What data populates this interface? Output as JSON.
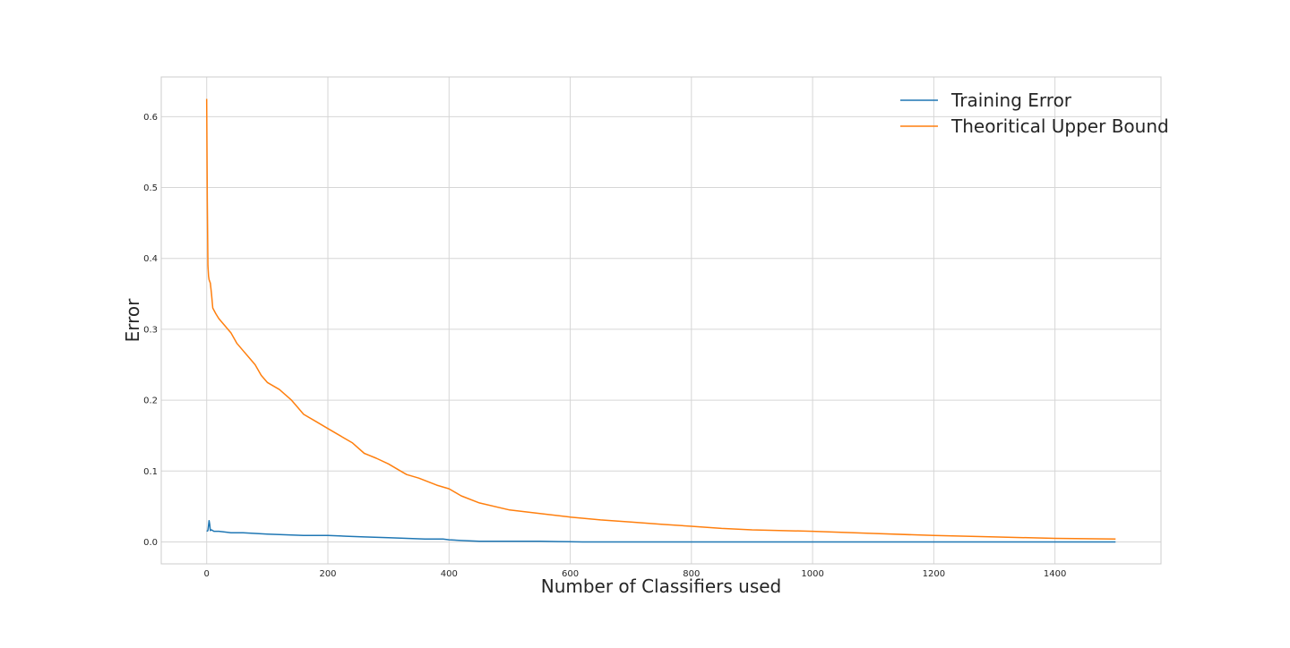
{
  "chart_data": {
    "type": "line",
    "title": "",
    "xlabel": "Number of Classifiers used",
    "ylabel": "Error",
    "xlim": [
      -75,
      1575
    ],
    "ylim": [
      -0.031,
      0.656
    ],
    "xticks": [
      0,
      200,
      400,
      600,
      800,
      1000,
      1200,
      1400
    ],
    "xtick_labels": [
      "0",
      "200",
      "400",
      "600",
      "800",
      "1000",
      "1200",
      "1400"
    ],
    "yticks": [
      0.0,
      0.1,
      0.2,
      0.3,
      0.4,
      0.5,
      0.6
    ],
    "ytick_labels": [
      "0.0",
      "0.1",
      "0.2",
      "0.3",
      "0.4",
      "0.5",
      "0.6"
    ],
    "grid": true,
    "legend_position": "top-right",
    "series": [
      {
        "name": "Training Error",
        "color": "#1f77b4",
        "x": [
          0,
          2,
          4,
          5,
          6,
          8,
          12,
          20,
          40,
          60,
          80,
          100,
          130,
          160,
          200,
          230,
          260,
          300,
          330,
          360,
          390,
          400,
          420,
          450,
          500,
          550,
          580,
          620,
          700,
          800,
          1000,
          1200,
          1500
        ],
        "y": [
          0.015,
          0.016,
          0.03,
          0.025,
          0.016,
          0.017,
          0.015,
          0.015,
          0.013,
          0.013,
          0.012,
          0.011,
          0.01,
          0.009,
          0.009,
          0.008,
          0.007,
          0.006,
          0.005,
          0.004,
          0.004,
          0.003,
          0.002,
          0.001,
          0.001,
          0.001,
          0.0005,
          0.0,
          0.0,
          0.0,
          0.0,
          0.0,
          0.0
        ]
      },
      {
        "name": "Theoritical Upper Bound",
        "color": "#ff7f0e",
        "x": [
          0,
          1,
          2,
          3,
          4,
          6,
          8,
          10,
          15,
          20,
          30,
          40,
          50,
          60,
          70,
          80,
          90,
          100,
          120,
          140,
          150,
          160,
          180,
          200,
          220,
          240,
          260,
          280,
          300,
          320,
          330,
          350,
          380,
          400,
          420,
          450,
          500,
          550,
          600,
          650,
          700,
          750,
          800,
          850,
          900,
          1000,
          1100,
          1200,
          1300,
          1400,
          1500
        ],
        "y": [
          0.625,
          0.48,
          0.39,
          0.375,
          0.37,
          0.365,
          0.35,
          0.33,
          0.322,
          0.315,
          0.305,
          0.295,
          0.28,
          0.27,
          0.26,
          0.25,
          0.235,
          0.225,
          0.215,
          0.2,
          0.19,
          0.18,
          0.17,
          0.16,
          0.15,
          0.14,
          0.125,
          0.118,
          0.11,
          0.1,
          0.095,
          0.09,
          0.08,
          0.075,
          0.065,
          0.055,
          0.045,
          0.04,
          0.035,
          0.031,
          0.028,
          0.025,
          0.022,
          0.019,
          0.017,
          0.015,
          0.012,
          0.009,
          0.007,
          0.005,
          0.004
        ]
      }
    ]
  }
}
